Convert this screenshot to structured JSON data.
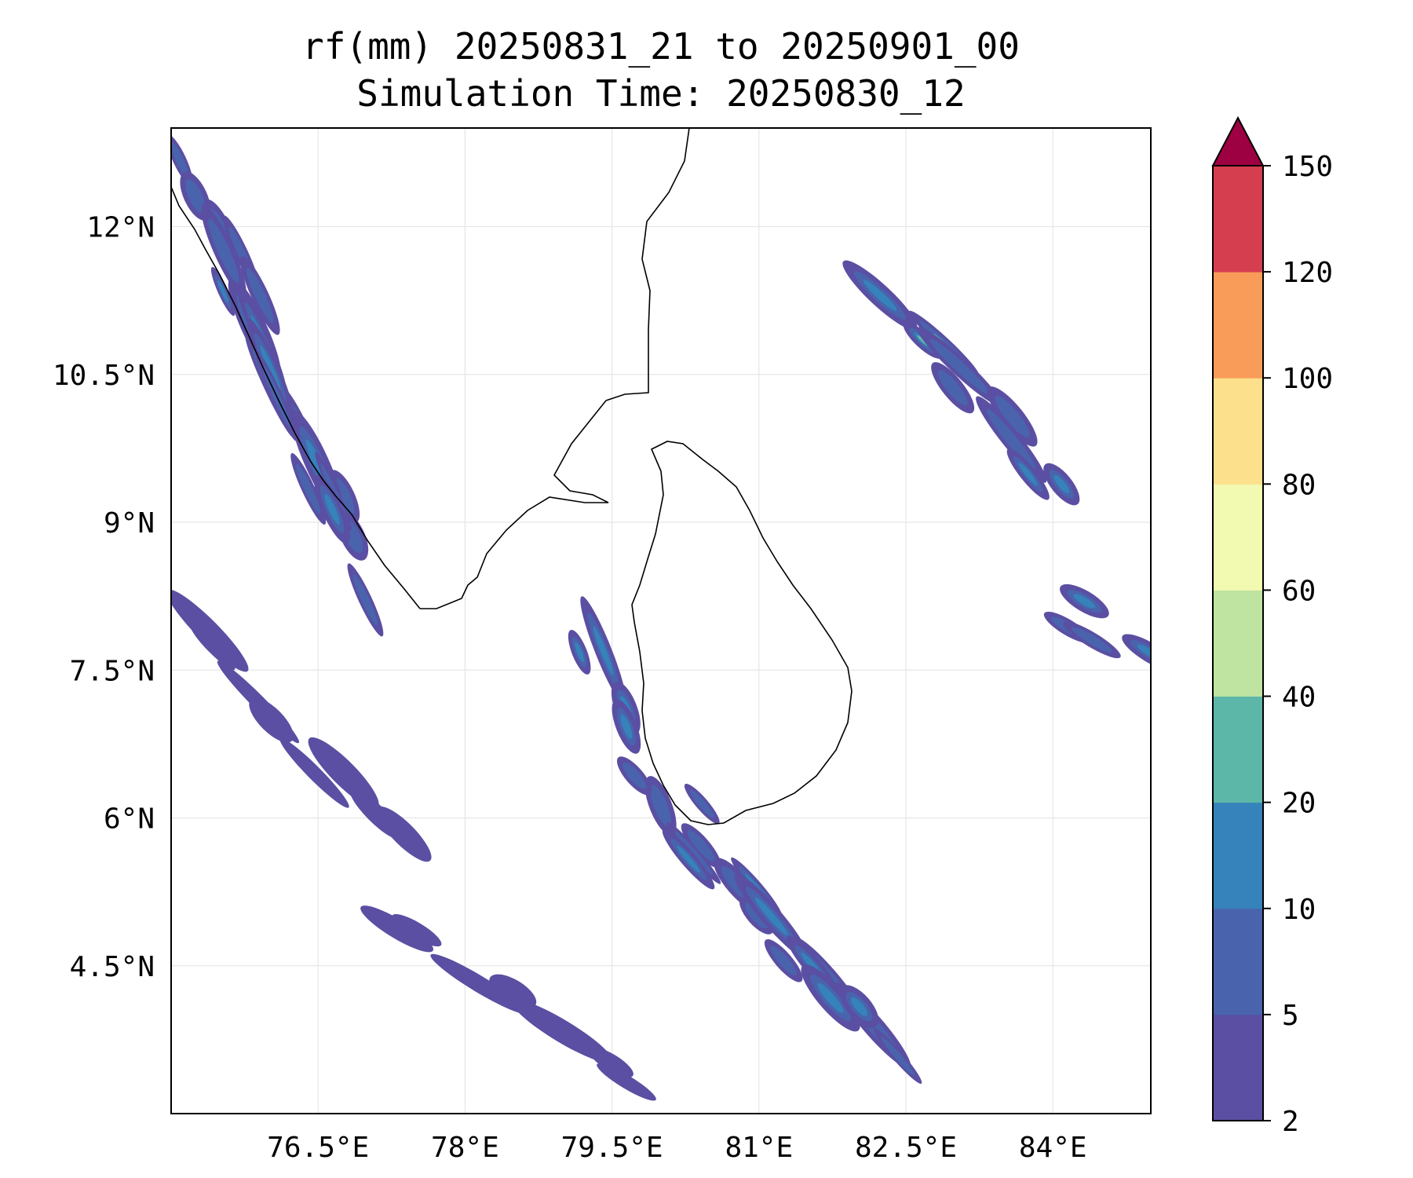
{
  "map": {
    "title_line1": "rf(mm) 20250831_21 to 20250901_00",
    "title_line2": "Simulation Time: 20250830_12",
    "lon_range": [
      75.0,
      85.0
    ],
    "lat_range": [
      3.0,
      13.0
    ],
    "gridlines": true,
    "lon_ticks": [
      {
        "value": 76.5,
        "label": "76.5°E"
      },
      {
        "value": 78.0,
        "label": "78°E"
      },
      {
        "value": 79.5,
        "label": "79.5°E"
      },
      {
        "value": 81.0,
        "label": "81°E"
      },
      {
        "value": 82.5,
        "label": "82.5°E"
      },
      {
        "value": 84.0,
        "label": "84°E"
      }
    ],
    "lat_ticks": [
      {
        "value": 12.0,
        "label": "12°N"
      },
      {
        "value": 10.5,
        "label": "10.5°N"
      },
      {
        "value": 9.0,
        "label": "9°N"
      },
      {
        "value": 7.5,
        "label": "7.5°N"
      },
      {
        "value": 6.0,
        "label": "6°N"
      },
      {
        "value": 4.5,
        "label": "4.5°N"
      }
    ],
    "coastline_color": "#000000"
  },
  "colorbar": {
    "levels": [
      {
        "value": 2,
        "label": "2"
      },
      {
        "value": 5,
        "label": "5"
      },
      {
        "value": 10,
        "label": "10"
      },
      {
        "value": 20,
        "label": "20"
      },
      {
        "value": 40,
        "label": "40"
      },
      {
        "value": 60,
        "label": "60"
      },
      {
        "value": 80,
        "label": "80"
      },
      {
        "value": 100,
        "label": "100"
      },
      {
        "value": 120,
        "label": "120"
      },
      {
        "value": 150,
        "label": "150"
      }
    ],
    "colors": [
      "#5a4fa2",
      "#4a63ad",
      "#3682ba",
      "#5db7a9",
      "#bfe3a0",
      "#f2f9b0",
      "#fde08b",
      "#f99b59",
      "#d53e4f"
    ],
    "extend_color": "#9e0142",
    "extend": "max"
  },
  "rain_bands": [
    {
      "lon": [
        75.0,
        77.2
      ],
      "lat": [
        12.9,
        8.2
      ],
      "level": 1
    },
    {
      "lon": [
        75.4,
        76.8
      ],
      "lat": [
        11.9,
        8.8
      ],
      "level": 2
    },
    {
      "lon": [
        79.2,
        80.0
      ],
      "lat": [
        8.1,
        6.1
      ],
      "level": 2
    },
    {
      "lon": [
        79.8,
        82.5
      ],
      "lat": [
        6.4,
        3.3
      ],
      "level": 1
    },
    {
      "lon": [
        80.1,
        82.0
      ],
      "lat": [
        6.1,
        3.9
      ],
      "level": 2
    },
    {
      "lon": [
        82.0,
        83.3
      ],
      "lat": [
        11.4,
        10.2
      ],
      "level": 3
    },
    {
      "lon": [
        83.0,
        84.3
      ],
      "lat": [
        10.6,
        9.0
      ],
      "level": 2
    },
    {
      "lon": [
        84.0,
        85.0
      ],
      "lat": [
        8.2,
        7.6
      ],
      "level": 2
    },
    {
      "lon": [
        75.0,
        77.5
      ],
      "lat": [
        8.0,
        5.5
      ],
      "level": 0
    },
    {
      "lon": [
        77.0,
        80.0
      ],
      "lat": [
        5.0,
        3.2
      ],
      "level": 0
    }
  ]
}
